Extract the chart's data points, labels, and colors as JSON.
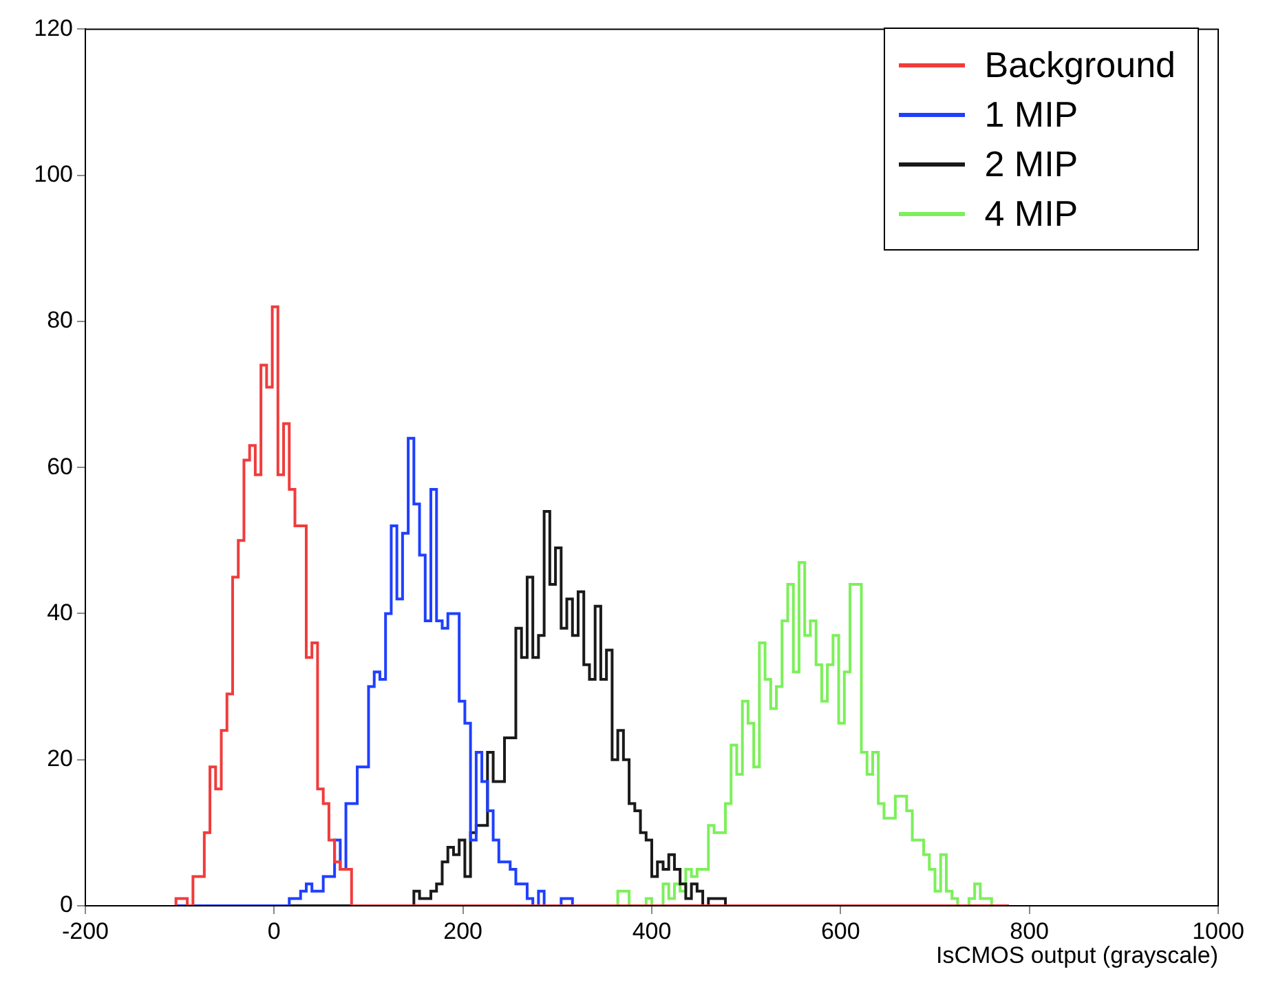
{
  "chart_data": {
    "type": "histogram",
    "xlabel": "IsCMOS output (grayscale)",
    "bins": [
      -104,
      -98,
      -92,
      -86,
      -80,
      -74,
      -68,
      -62,
      -56,
      -50,
      -44,
      -38,
      -32,
      -26,
      -20,
      -14,
      -8,
      -2,
      4,
      10,
      16,
      22,
      28,
      34,
      40,
      46,
      52,
      58,
      64,
      70,
      76,
      82,
      88,
      94,
      100,
      106,
      112,
      118,
      124,
      130,
      136,
      142,
      148,
      154,
      160,
      166,
      172,
      178,
      184,
      190,
      196,
      202,
      208,
      214,
      220,
      226,
      232,
      238,
      244,
      250,
      256,
      262,
      268,
      274,
      280,
      286,
      292,
      298,
      304,
      310,
      316,
      322,
      328,
      334,
      340,
      346,
      352,
      358,
      364,
      370,
      376,
      382,
      388,
      394,
      400,
      406,
      412,
      418,
      424,
      430,
      436,
      442,
      448,
      454,
      460,
      466,
      472,
      478,
      484,
      490,
      496,
      502,
      508,
      514,
      520,
      526,
      532,
      538,
      544,
      550,
      556,
      562,
      568,
      574,
      580,
      586,
      592,
      598,
      604,
      610,
      616,
      622,
      628,
      634,
      640,
      646,
      652,
      658,
      664,
      670,
      676,
      682,
      688,
      694,
      700,
      706,
      712,
      718,
      724,
      730,
      736,
      742,
      748,
      754,
      760,
      766,
      772,
      778
    ],
    "series": [
      {
        "name": "Background",
        "color": "#f03c3c",
        "values": [
          1,
          1,
          0,
          4,
          4,
          10,
          19,
          16,
          24,
          29,
          45,
          50,
          61,
          63,
          59,
          74,
          71,
          82,
          59,
          66,
          57,
          52,
          52,
          34,
          36,
          16,
          14,
          9,
          6,
          5,
          5,
          0,
          0,
          0,
          0,
          0,
          0,
          0,
          0,
          0,
          0,
          0,
          0,
          0,
          0,
          0,
          0,
          0,
          0,
          0,
          0,
          0,
          0,
          0,
          0,
          0,
          0,
          0,
          0,
          0,
          0,
          0,
          0,
          0,
          0,
          0,
          0,
          0,
          0,
          0,
          0,
          0,
          0,
          0,
          0,
          0,
          0,
          0,
          0,
          0,
          0,
          0,
          0,
          0,
          0,
          0,
          0,
          0,
          0,
          0,
          0,
          0,
          0,
          0,
          0,
          0,
          0,
          0,
          0,
          0,
          0,
          0,
          0,
          0,
          0,
          0,
          0,
          0,
          0,
          0,
          0,
          0,
          0,
          0,
          0,
          0,
          0,
          0,
          0,
          0,
          0,
          0,
          0,
          0,
          0,
          0,
          0,
          0,
          0,
          0,
          0,
          0,
          0,
          0,
          0,
          0,
          0,
          0,
          0,
          0,
          0,
          0,
          0,
          0,
          0,
          0,
          0
        ]
      },
      {
        "name": "1 MIP",
        "color": "#1f3fff",
        "values": [
          0,
          0,
          0,
          0,
          0,
          0,
          0,
          0,
          0,
          0,
          0,
          0,
          0,
          0,
          0,
          0,
          0,
          0,
          0,
          0,
          1,
          1,
          2,
          3,
          2,
          2,
          4,
          4,
          9,
          5,
          14,
          14,
          19,
          19,
          30,
          32,
          31,
          40,
          52,
          42,
          51,
          64,
          55,
          48,
          39,
          57,
          39,
          38,
          40,
          40,
          28,
          25,
          9,
          21,
          17,
          13,
          9,
          6,
          6,
          5,
          3,
          3,
          1,
          0,
          2,
          0,
          0,
          0,
          1,
          1,
          0,
          0,
          0,
          0,
          0,
          0,
          0,
          0,
          0,
          0,
          0,
          0,
          0,
          0,
          0,
          0,
          0,
          0,
          0,
          0,
          0,
          0,
          0,
          0,
          0,
          0,
          0,
          0,
          0,
          0,
          0,
          0,
          0,
          0,
          0,
          0,
          0,
          0,
          0,
          0,
          0,
          0,
          0,
          0,
          0,
          0,
          0,
          0,
          0,
          0,
          0,
          0,
          0,
          0,
          0,
          0,
          0,
          0,
          0,
          0,
          0,
          0,
          0,
          0,
          0,
          0,
          0,
          0,
          0,
          0,
          0,
          0,
          0,
          0,
          0,
          0,
          0
        ]
      },
      {
        "name": "2 MIP",
        "color": "#1a1a1a",
        "values": [
          0,
          0,
          0,
          0,
          0,
          0,
          0,
          0,
          0,
          0,
          0,
          0,
          0,
          0,
          0,
          0,
          0,
          0,
          0,
          0,
          0,
          0,
          0,
          0,
          0,
          0,
          0,
          0,
          0,
          0,
          0,
          0,
          0,
          0,
          0,
          0,
          0,
          0,
          0,
          0,
          0,
          0,
          2,
          1,
          1,
          2,
          3,
          6,
          8,
          7,
          9,
          4,
          10,
          11,
          11,
          21,
          17,
          17,
          23,
          23,
          38,
          34,
          45,
          34,
          37,
          54,
          44,
          49,
          38,
          42,
          37,
          43,
          33,
          31,
          41,
          31,
          35,
          20,
          24,
          20,
          14,
          13,
          10,
          9,
          4,
          6,
          5,
          7,
          5,
          3,
          1,
          3,
          2,
          0,
          1,
          1,
          1,
          0,
          0,
          0,
          0,
          0,
          0,
          0,
          0,
          0,
          0,
          0,
          0,
          0,
          0,
          0,
          0,
          0,
          0,
          0,
          0,
          0,
          0,
          0,
          0,
          0,
          0,
          0,
          0,
          0,
          0,
          0,
          0,
          0,
          0,
          0,
          0,
          0,
          0,
          0,
          0,
          0,
          0,
          0,
          0,
          0,
          0,
          0,
          0,
          0,
          0
        ]
      },
      {
        "name": "4 MIP",
        "color": "#7cf05a",
        "values": [
          0,
          0,
          0,
          0,
          0,
          0,
          0,
          0,
          0,
          0,
          0,
          0,
          0,
          0,
          0,
          0,
          0,
          0,
          0,
          0,
          0,
          0,
          0,
          0,
          0,
          0,
          0,
          0,
          0,
          0,
          0,
          0,
          0,
          0,
          0,
          0,
          0,
          0,
          0,
          0,
          0,
          0,
          0,
          0,
          0,
          0,
          0,
          0,
          0,
          0,
          0,
          0,
          0,
          0,
          0,
          0,
          0,
          0,
          0,
          0,
          0,
          0,
          0,
          0,
          0,
          0,
          0,
          0,
          0,
          0,
          0,
          0,
          0,
          0,
          0,
          0,
          0,
          0,
          2,
          2,
          0,
          0,
          0,
          1,
          0,
          0,
          3,
          1,
          3,
          2,
          5,
          4,
          5,
          5,
          11,
          10,
          10,
          14,
          22,
          18,
          28,
          25,
          19,
          36,
          31,
          27,
          30,
          39,
          44,
          32,
          47,
          37,
          39,
          33,
          28,
          33,
          37,
          25,
          32,
          44,
          44,
          21,
          18,
          21,
          14,
          12,
          12,
          15,
          15,
          13,
          9,
          9,
          7,
          5,
          2,
          7,
          2,
          1,
          0,
          0,
          1,
          3,
          1,
          1,
          0,
          0,
          0
        ]
      }
    ],
    "xlim": [
      -200,
      1000
    ],
    "xticks": [
      -200,
      0,
      200,
      400,
      600,
      800,
      1000
    ],
    "ylim": [
      0,
      120
    ],
    "yticks": [
      0,
      20,
      40,
      60,
      80,
      100,
      120
    ],
    "grid": false,
    "legend": "top right"
  }
}
